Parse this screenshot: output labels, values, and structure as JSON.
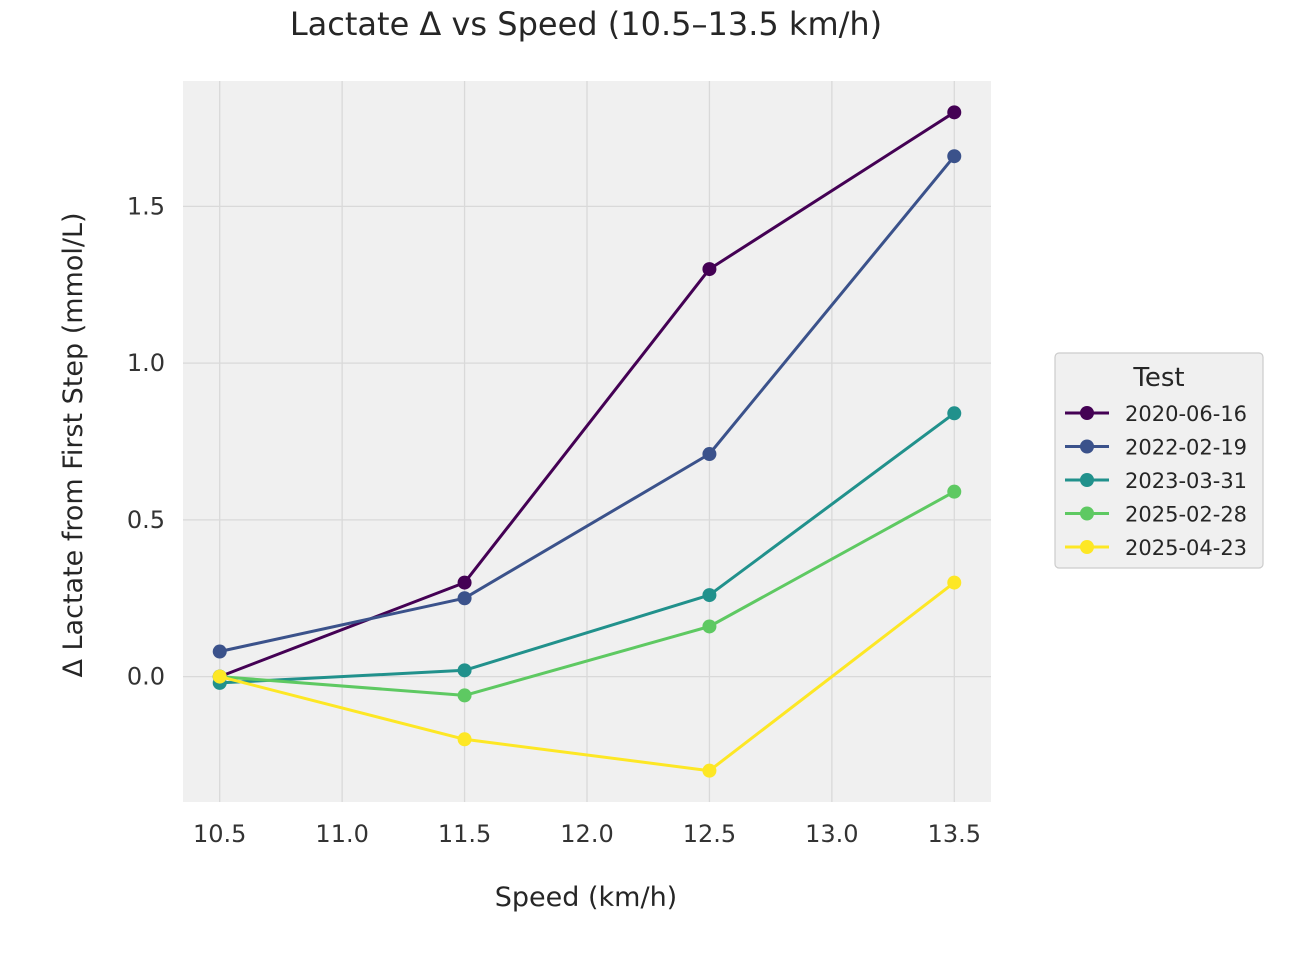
{
  "chart_data": {
    "type": "line",
    "title": "Lactate Δ vs Speed (10.5–13.5 km/h)",
    "xlabel": "Speed (km/h)",
    "ylabel": "Δ Lactate from First Step (mmol/L)",
    "xlim": [
      10.35,
      13.65
    ],
    "ylim": [
      -0.4,
      1.9
    ],
    "xticks": [
      "10.5",
      "11.0",
      "11.5",
      "12.0",
      "12.5",
      "13.0",
      "13.5"
    ],
    "yticks": [
      "0.0",
      "0.5",
      "1.0",
      "1.5"
    ],
    "grid": true,
    "legend": {
      "title": "Test",
      "position": "right"
    },
    "x": [
      10.5,
      11.5,
      12.5,
      13.5
    ],
    "series": [
      {
        "name": "2020-06-16",
        "color": "#440154",
        "values": [
          0.0,
          0.3,
          1.3,
          1.8
        ]
      },
      {
        "name": "2022-02-19",
        "color": "#3b528b",
        "values": [
          0.08,
          0.25,
          0.71,
          1.66
        ]
      },
      {
        "name": "2023-03-31",
        "color": "#21918c",
        "values": [
          -0.02,
          0.02,
          0.26,
          0.84
        ]
      },
      {
        "name": "2025-02-28",
        "color": "#5ec962",
        "values": [
          0.0,
          -0.06,
          0.16,
          0.59
        ]
      },
      {
        "name": "2025-04-23",
        "color": "#fde725",
        "values": [
          0.0,
          -0.2,
          -0.3,
          0.3
        ]
      }
    ]
  }
}
